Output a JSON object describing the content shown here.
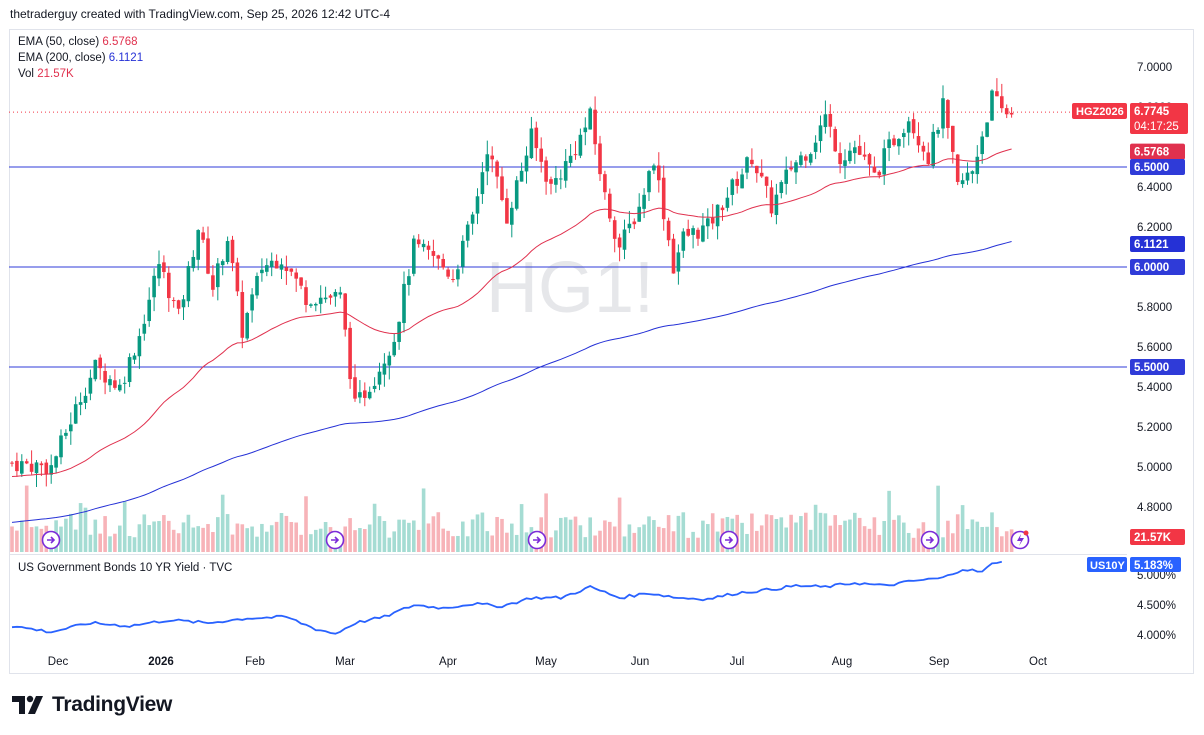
{
  "header": {
    "text": "thetraderguy created with TradingView.com, Sep 25, 2026 12:42 UTC-4"
  },
  "legend": {
    "ema50_label": "EMA (50, close)",
    "ema50_value": "6.5768",
    "ema200_label": "EMA (200, close)",
    "ema200_value": "6.1121",
    "vol_label": "Vol",
    "vol_value": "21.57K"
  },
  "watermark": "HG1!",
  "lower_panel": {
    "title": "US Government Bonds 10 YR Yield · TVC"
  },
  "footer": {
    "brand": "TradingView"
  },
  "colors": {
    "up": "#089981",
    "down": "#f23645",
    "ema50": "#e0314e",
    "ema200": "#2531d6",
    "hline": "#2f3bd8",
    "yield": "#2962ff",
    "vol_up": "#a5dcd3",
    "vol_down": "#f7b3b8"
  },
  "chart_data": [
    {
      "type": "candlestick",
      "symbol_tag": "HGZ2026",
      "last_price": "6.7745",
      "countdown": "04:17:25",
      "ylim": [
        4.75,
        7.1
      ],
      "y_ticks": [
        "7.0000",
        "6.8000",
        "6.4000",
        "6.2000",
        "5.8000",
        "5.6000",
        "5.4000",
        "5.2000",
        "5.0000",
        "4.8000"
      ],
      "x_labels": [
        "Dec",
        "2026",
        "Feb",
        "Mar",
        "Apr",
        "May",
        "Jun",
        "Jul",
        "Aug",
        "Sep",
        "Oct"
      ],
      "horizontal_levels": [
        {
          "value": 6.5,
          "label": "6.5000"
        },
        {
          "value": 6.0,
          "label": "6.0000"
        },
        {
          "value": 5.5,
          "label": "5.5000"
        }
      ],
      "series": [
        {
          "name": "EMA (50, close)",
          "last_label": "6.5768"
        },
        {
          "name": "EMA (200, close)",
          "last_label": "6.1121"
        },
        {
          "name": "Vol",
          "last_label": "21.57K"
        }
      ],
      "trend_anchors": [
        [
          0,
          5.02
        ],
        [
          8,
          5.0
        ],
        [
          14,
          5.35
        ],
        [
          17,
          5.5
        ],
        [
          22,
          5.4
        ],
        [
          26,
          5.66
        ],
        [
          30,
          6.02
        ],
        [
          34,
          5.75
        ],
        [
          38,
          6.2
        ],
        [
          41,
          5.9
        ],
        [
          44,
          6.15
        ],
        [
          47,
          5.68
        ],
        [
          51,
          6.0
        ],
        [
          55,
          6.05
        ],
        [
          60,
          5.85
        ],
        [
          63,
          5.85
        ],
        [
          67,
          5.85
        ],
        [
          70,
          5.3
        ],
        [
          74,
          5.45
        ],
        [
          78,
          5.65
        ],
        [
          82,
          6.1
        ],
        [
          86,
          6.05
        ],
        [
          90,
          5.95
        ],
        [
          94,
          6.25
        ],
        [
          97,
          6.6
        ],
        [
          101,
          6.25
        ],
        [
          106,
          6.65
        ],
        [
          110,
          6.4
        ],
        [
          114,
          6.55
        ],
        [
          118,
          6.75
        ],
        [
          121,
          6.35
        ],
        [
          124,
          6.1
        ],
        [
          128,
          6.3
        ],
        [
          131,
          6.55
        ],
        [
          135,
          6.0
        ],
        [
          137,
          6.15
        ],
        [
          142,
          6.2
        ],
        [
          147,
          6.4
        ],
        [
          151,
          6.55
        ],
        [
          155,
          6.3
        ],
        [
          159,
          6.5
        ],
        [
          163,
          6.6
        ],
        [
          166,
          6.75
        ],
        [
          169,
          6.55
        ],
        [
          172,
          6.6
        ],
        [
          176,
          6.45
        ],
        [
          179,
          6.6
        ],
        [
          183,
          6.75
        ],
        [
          187,
          6.55
        ],
        [
          190,
          6.8
        ],
        [
          193,
          6.4
        ],
        [
          196,
          6.48
        ],
        [
          200,
          6.85
        ],
        [
          202,
          6.78
        ],
        [
          204,
          6.77
        ]
      ]
    },
    {
      "type": "line",
      "symbol_tag": "US10Y",
      "last_label": "5.183%",
      "y_ticks": [
        "5.000%",
        "4.500%",
        "4.000%"
      ],
      "ylim": [
        3.85,
        5.25
      ],
      "anchors": [
        [
          0,
          4.15
        ],
        [
          8,
          4.05
        ],
        [
          16,
          4.2
        ],
        [
          24,
          4.15
        ],
        [
          32,
          4.25
        ],
        [
          40,
          4.2
        ],
        [
          48,
          4.28
        ],
        [
          56,
          4.3
        ],
        [
          62,
          4.1
        ],
        [
          66,
          4.02
        ],
        [
          70,
          4.2
        ],
        [
          76,
          4.3
        ],
        [
          82,
          4.5
        ],
        [
          88,
          4.45
        ],
        [
          94,
          4.52
        ],
        [
          100,
          4.48
        ],
        [
          106,
          4.62
        ],
        [
          112,
          4.62
        ],
        [
          118,
          4.8
        ],
        [
          124,
          4.62
        ],
        [
          130,
          4.7
        ],
        [
          136,
          4.62
        ],
        [
          142,
          4.6
        ],
        [
          148,
          4.7
        ],
        [
          154,
          4.75
        ],
        [
          160,
          4.82
        ],
        [
          166,
          4.8
        ],
        [
          172,
          4.87
        ],
        [
          178,
          4.82
        ],
        [
          184,
          4.9
        ],
        [
          190,
          4.95
        ],
        [
          194,
          5.1
        ],
        [
          198,
          5.05
        ],
        [
          200,
          5.18
        ],
        [
          202,
          5.22
        ]
      ]
    }
  ]
}
